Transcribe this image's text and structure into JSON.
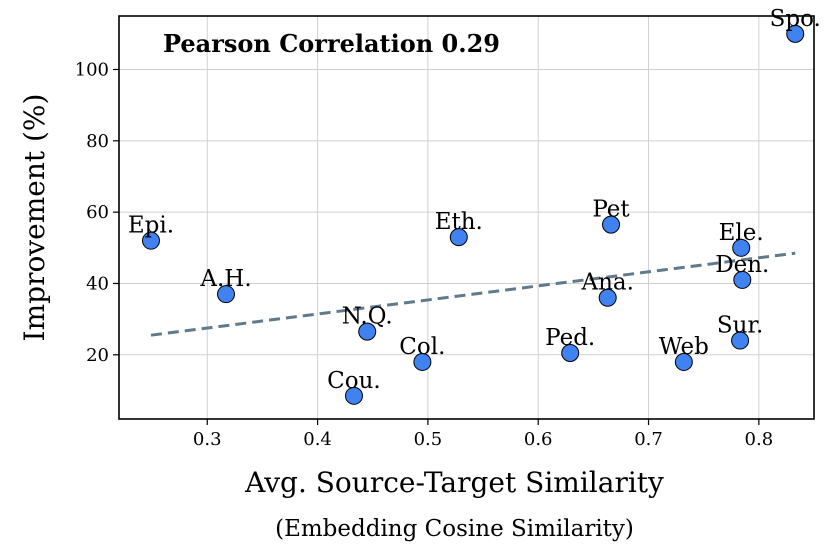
{
  "chart_data": {
    "type": "scatter",
    "title": "",
    "annotation": "Pearson Correlation 0.29",
    "xlabel": "Avg. Source-Target Similarity",
    "xlabel_sub": "(Embedding Cosine Similarity)",
    "ylabel": "Improvement (%)",
    "xlim": [
      0.22,
      0.85
    ],
    "ylim": [
      2,
      115
    ],
    "xticks": [
      0.3,
      0.4,
      0.5,
      0.6,
      0.7,
      0.8
    ],
    "xtick_labels": [
      "0.3",
      "0.4",
      "0.5",
      "0.6",
      "0.7",
      "0.8"
    ],
    "yticks": [
      20,
      40,
      60,
      80,
      100
    ],
    "ytick_labels": [
      "20",
      "40",
      "60",
      "80",
      "100"
    ],
    "grid": true,
    "point_color": "#3f82f0",
    "trend_color": "#5f7a8c",
    "points": [
      {
        "label": "Epi.",
        "x": 0.249,
        "y": 52
      },
      {
        "label": "A.H.",
        "x": 0.317,
        "y": 37
      },
      {
        "label": "Cou.",
        "x": 0.433,
        "y": 8.5
      },
      {
        "label": "N.Q.",
        "x": 0.445,
        "y": 26.5
      },
      {
        "label": "Col.",
        "x": 0.495,
        "y": 18
      },
      {
        "label": "Eth.",
        "x": 0.528,
        "y": 53
      },
      {
        "label": "Ped.",
        "x": 0.629,
        "y": 20.5
      },
      {
        "label": "Ana.",
        "x": 0.663,
        "y": 36
      },
      {
        "label": "Pet",
        "x": 0.666,
        "y": 56.5
      },
      {
        "label": "Web",
        "x": 0.732,
        "y": 18
      },
      {
        "label": "Sur.",
        "x": 0.783,
        "y": 24
      },
      {
        "label": "Den.",
        "x": 0.785,
        "y": 41
      },
      {
        "label": "Ele.",
        "x": 0.784,
        "y": 50
      },
      {
        "label": "Spo.",
        "x": 0.833,
        "y": 110
      }
    ],
    "trend": {
      "x": [
        0.249,
        0.833
      ],
      "y": [
        25.5,
        48.5
      ]
    }
  }
}
